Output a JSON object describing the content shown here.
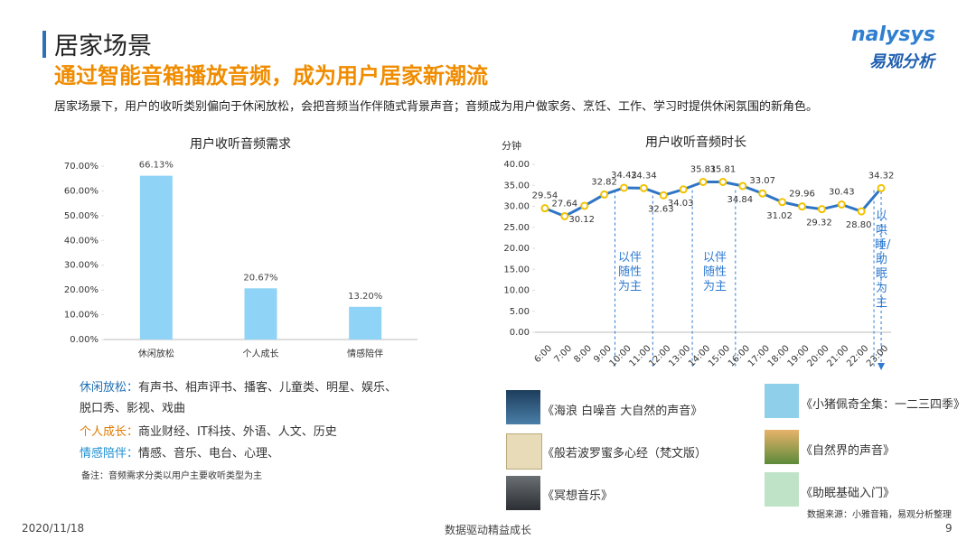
{
  "header": {
    "title": "居家场景",
    "subtitle": "通过智能音箱播放音频，成为用户居家新潮流",
    "logo": "nalysys",
    "logo_cn": "易观分析",
    "intro": "居家场景下，用户的收听类别偏向于休闲放松，会把音频当作伴随式背景声音；音频成为用户做家务、烹饪、工作、学习时提供休闲氛围的新角色。"
  },
  "chart_data": [
    {
      "type": "bar",
      "title": "用户收听音频需求",
      "categories": [
        "休闲放松",
        "个人成长",
        "情感陪伴"
      ],
      "values": [
        66.13,
        20.67,
        13.2
      ],
      "value_labels": [
        "66.13%",
        "20.67%",
        "13.20%"
      ],
      "color": "#8fd3f6",
      "ylim": [
        0,
        70
      ],
      "yticks": [
        {
          "value": 0,
          "label": "0.00%"
        },
        {
          "value": 10,
          "label": "10.00%"
        },
        {
          "value": 20,
          "label": "20.00%"
        },
        {
          "value": 30,
          "label": "30.00%"
        },
        {
          "value": 40,
          "label": "40.00%"
        },
        {
          "value": 50,
          "label": "50.00%"
        },
        {
          "value": 60,
          "label": "60.00%"
        },
        {
          "value": 70,
          "label": "70.00%"
        }
      ]
    },
    {
      "type": "line",
      "title": "用户收听音频时长",
      "y_label": "分钟",
      "categories": [
        "6:00",
        "7:00",
        "8:00",
        "9:00",
        "10:00",
        "11:00",
        "12:00",
        "13:00",
        "14:00",
        "15:00",
        "16:00",
        "17:00",
        "18:00",
        "19:00",
        "20:00",
        "21:00",
        "22:00",
        "23:00"
      ],
      "values": [
        29.54,
        27.64,
        30.12,
        32.82,
        34.42,
        34.34,
        32.63,
        34.03,
        35.81,
        35.81,
        34.84,
        33.07,
        31.02,
        29.96,
        29.32,
        30.43,
        28.8,
        34.32
      ],
      "value_labels": [
        "29.54",
        "27.64",
        "30.12",
        "32.82",
        "34.42",
        "34.34",
        "32.63",
        "34.03",
        "35.81",
        "35.81",
        "34.84",
        "33.07",
        "31.02",
        "29.96",
        "29.32",
        "30.43",
        "28.80",
        "34.32"
      ],
      "color": "#2e75c6",
      "marker_color": "#f2c200",
      "ylim": [
        0,
        40
      ],
      "yticks": [
        {
          "value": 0,
          "label": "0.00"
        },
        {
          "value": 5,
          "label": "5.00"
        },
        {
          "value": 10,
          "label": "10.00"
        },
        {
          "value": 15,
          "label": "15.00"
        },
        {
          "value": 20,
          "label": "20.00"
        },
        {
          "value": 25,
          "label": "25.00"
        },
        {
          "value": 30,
          "label": "30.00"
        },
        {
          "value": 35,
          "label": "35.00"
        },
        {
          "value": 40,
          "label": "40.00"
        }
      ],
      "annotations": [
        "以伴随性为主",
        "以伴随性为主",
        "以哄睡/助眠为主"
      ]
    }
  ],
  "notes": [
    {
      "label": "休闲放松：",
      "text": "有声书、相声评书、播客、儿童类、明星、娱乐、",
      "text2": "脱口秀、影视、戏曲"
    },
    {
      "label": "个人成长：",
      "text": "商业财经、IT科技、外语、人文、历史"
    },
    {
      "label": "情感陪伴：",
      "text": "情感、音乐、电台、心理、"
    }
  ],
  "remark": "备注：音频需求分类以用户主要收听类型为主",
  "albums": [
    "《海浪 白噪音 大自然的声音》",
    "《般若波罗蜜多心经（梵文版）",
    "《冥想音乐》",
    "《小猪佩奇全集：一二三四季》",
    "《自然界的声音》",
    "《助眠基础入门》"
  ],
  "source": "数据来源：小雅音箱，易观分析整理",
  "footer": {
    "date": "2020/11/18",
    "slogan": "数据驱动精益成长",
    "page": "9"
  }
}
